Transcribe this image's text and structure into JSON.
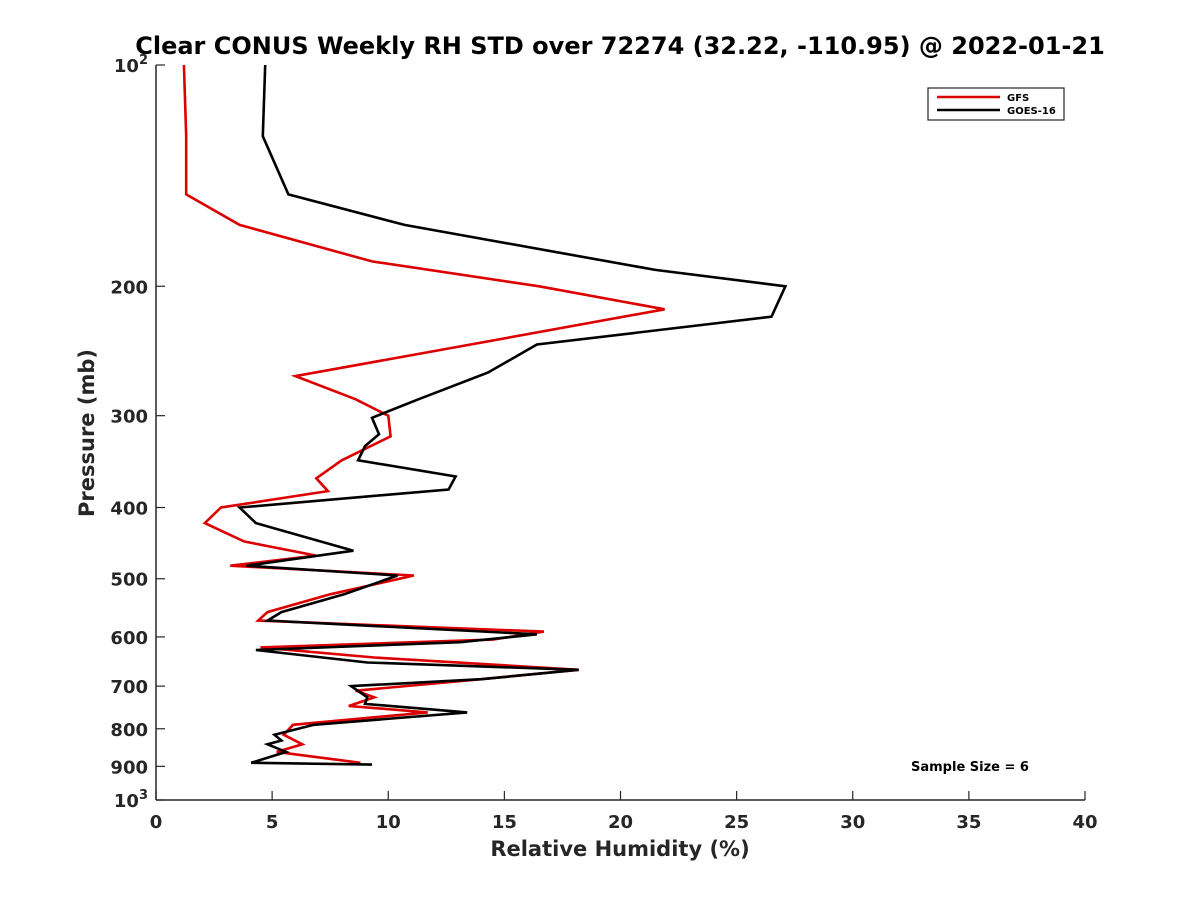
{
  "chart_data": {
    "type": "line",
    "title": "Clear CONUS Weekly RH STD over 72274 (32.22, -110.95) @ 2022-01-21",
    "xlabel": "Relative Humidity (%)",
    "ylabel": "Pressure (mb)",
    "xlim": [
      0,
      40
    ],
    "ylim": [
      100,
      1000
    ],
    "yscale": "log",
    "y_reversed": true,
    "xticks": [
      0,
      5,
      10,
      15,
      20,
      25,
      30,
      35,
      40
    ],
    "xtick_labels": [
      "0",
      "5",
      "10",
      "15",
      "20",
      "25",
      "30",
      "35",
      "40"
    ],
    "yticks": [
      {
        "value": 100,
        "base": "10",
        "exp": "2",
        "label": ""
      },
      {
        "value": 200,
        "base": "",
        "exp": "",
        "label": "200"
      },
      {
        "value": 300,
        "base": "",
        "exp": "",
        "label": "300"
      },
      {
        "value": 400,
        "base": "",
        "exp": "",
        "label": "400"
      },
      {
        "value": 500,
        "base": "",
        "exp": "",
        "label": "500"
      },
      {
        "value": 600,
        "base": "",
        "exp": "",
        "label": "600"
      },
      {
        "value": 700,
        "base": "",
        "exp": "",
        "label": "700"
      },
      {
        "value": 800,
        "base": "",
        "exp": "",
        "label": "800"
      },
      {
        "value": 900,
        "base": "",
        "exp": "",
        "label": "900"
      },
      {
        "value": 1000,
        "base": "10",
        "exp": "3",
        "label": ""
      }
    ],
    "grid": false,
    "legend_position": "top-right",
    "series": [
      {
        "name": "GFS",
        "color": "#dd0000",
        "points": [
          [
            1.2,
            100
          ],
          [
            1.3,
            125
          ],
          [
            1.3,
            150
          ],
          [
            3.6,
            165
          ],
          [
            9.3,
            185
          ],
          [
            16.5,
            200
          ],
          [
            21.9,
            215
          ],
          [
            12.0,
            245
          ],
          [
            6.0,
            265
          ],
          [
            8.6,
            285
          ],
          [
            10.0,
            300
          ],
          [
            10.1,
            320
          ],
          [
            8.0,
            345
          ],
          [
            6.9,
            365
          ],
          [
            7.4,
            380
          ],
          [
            2.8,
            400
          ],
          [
            2.1,
            420
          ],
          [
            3.8,
            445
          ],
          [
            6.9,
            465
          ],
          [
            3.2,
            480
          ],
          [
            11.1,
            495
          ],
          [
            7.5,
            525
          ],
          [
            4.8,
            555
          ],
          [
            4.4,
            570
          ],
          [
            16.7,
            590
          ],
          [
            14.5,
            605
          ],
          [
            4.5,
            620
          ],
          [
            9.4,
            640
          ],
          [
            18.2,
            665
          ],
          [
            14.0,
            685
          ],
          [
            8.6,
            710
          ],
          [
            9.4,
            725
          ],
          [
            8.3,
            745
          ],
          [
            11.7,
            760
          ],
          [
            5.9,
            790
          ],
          [
            5.5,
            815
          ],
          [
            6.3,
            840
          ],
          [
            5.2,
            860
          ],
          [
            8.8,
            890
          ]
        ]
      },
      {
        "name": "GOES-16",
        "color": "#000000",
        "points": [
          [
            4.7,
            100
          ],
          [
            4.6,
            125
          ],
          [
            5.7,
            150
          ],
          [
            10.7,
            165
          ],
          [
            21.5,
            190
          ],
          [
            27.1,
            200
          ],
          [
            26.5,
            220
          ],
          [
            16.4,
            240
          ],
          [
            14.3,
            262
          ],
          [
            11.3,
            285
          ],
          [
            9.3,
            302
          ],
          [
            9.6,
            318
          ],
          [
            9.0,
            330
          ],
          [
            8.7,
            345
          ],
          [
            12.9,
            363
          ],
          [
            12.6,
            378
          ],
          [
            3.6,
            400
          ],
          [
            4.3,
            420
          ],
          [
            8.5,
            458
          ],
          [
            3.9,
            480
          ],
          [
            10.4,
            495
          ],
          [
            8.1,
            525
          ],
          [
            5.4,
            555
          ],
          [
            4.8,
            570
          ],
          [
            16.4,
            595
          ],
          [
            13.1,
            610
          ],
          [
            4.3,
            625
          ],
          [
            9.1,
            650
          ],
          [
            18.2,
            665
          ],
          [
            14.0,
            685
          ],
          [
            8.4,
            700
          ],
          [
            9.1,
            725
          ],
          [
            9.0,
            740
          ],
          [
            13.4,
            760
          ],
          [
            6.8,
            790
          ],
          [
            5.1,
            815
          ],
          [
            5.4,
            830
          ],
          [
            4.8,
            840
          ],
          [
            5.6,
            860
          ],
          [
            4.1,
            890
          ],
          [
            9.3,
            895
          ]
        ]
      }
    ],
    "annotations": [
      "Sample Size = 6"
    ]
  }
}
